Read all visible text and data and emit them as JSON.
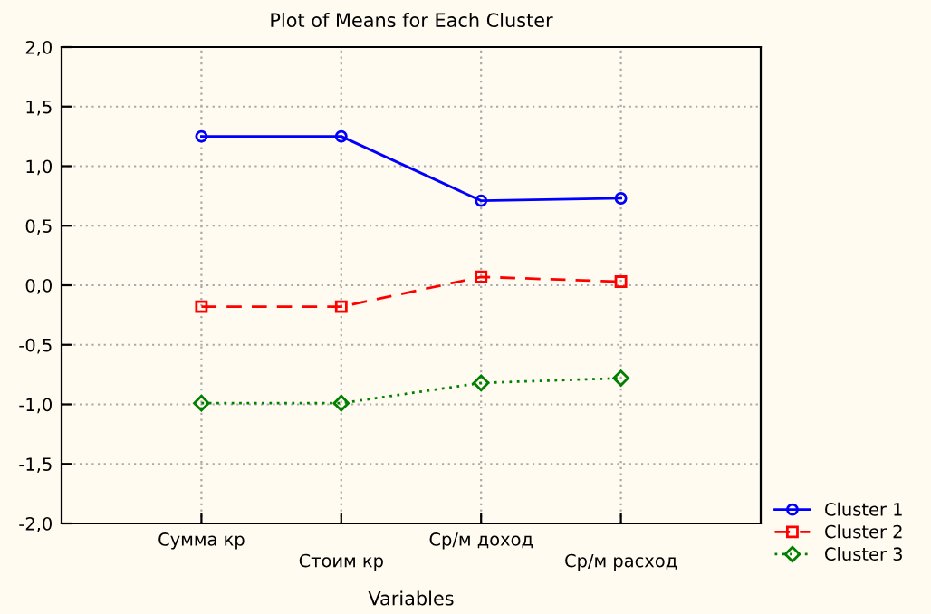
{
  "chart_data": {
    "type": "line",
    "title": "Plot of Means for Each Cluster",
    "xlabel": "Variables",
    "categories": [
      "Сумма кр",
      "Стоим кр",
      "Ср/м доход",
      "Ср/м расход"
    ],
    "series": [
      {
        "name": "Cluster 1",
        "color": "#0000ff",
        "values": [
          1.25,
          1.25,
          0.71,
          0.73
        ],
        "marker": "circle",
        "line_style": "solid"
      },
      {
        "name": "Cluster 2",
        "color": "#ff0000",
        "values": [
          -0.18,
          -0.18,
          0.07,
          0.03
        ],
        "marker": "square",
        "line_style": "dashed"
      },
      {
        "name": "Cluster 3",
        "color": "#008000",
        "values": [
          -0.99,
          -0.99,
          -0.82,
          -0.78
        ],
        "marker": "diamond",
        "line_style": "dotted"
      }
    ],
    "ylim": [
      -2,
      2
    ],
    "yticks": [
      {
        "value": -2,
        "label": "-2,0"
      },
      {
        "value": -1.5,
        "label": "-1,5"
      },
      {
        "value": -1,
        "label": "-1,0"
      },
      {
        "value": -0.5,
        "label": "-0,5"
      },
      {
        "value": 0,
        "label": "0,0"
      },
      {
        "value": 0.5,
        "label": "0,5"
      },
      {
        "value": 1,
        "label": "1,0"
      },
      {
        "value": 1.5,
        "label": "1,5"
      },
      {
        "value": 2,
        "label": "2,0"
      }
    ],
    "grid": true,
    "legend": "bottom right"
  }
}
